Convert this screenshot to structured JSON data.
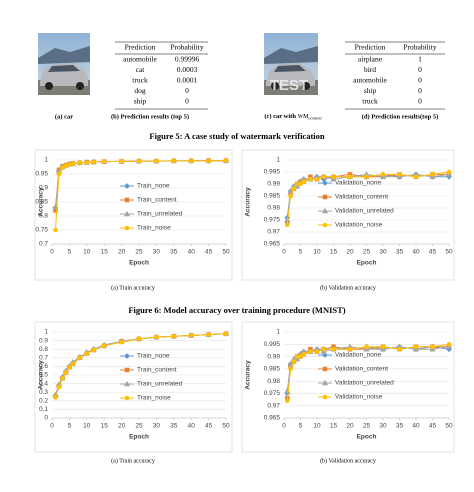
{
  "figure5": {
    "caption": "Figure 5: A case study of watermark verification",
    "images": [
      {
        "caption": "(a) car"
      },
      {
        "caption_parts": [
          "(c) car with ",
          "WM",
          "content"
        ],
        "watermark": "TEST"
      }
    ],
    "tables": [
      {
        "header": [
          "Prediction",
          "Probability"
        ],
        "rows": [
          [
            "automobile",
            "0.99996"
          ],
          [
            "cat",
            "0.0003"
          ],
          [
            "truck",
            "0.0001"
          ],
          [
            "dog",
            "0"
          ],
          [
            "ship",
            "0"
          ]
        ],
        "caption": "(b) Prediction results (top 5)"
      },
      {
        "header": [
          "Prediction",
          "Probability"
        ],
        "rows": [
          [
            "airplane",
            "1"
          ],
          [
            "bird",
            "0"
          ],
          [
            "automobile",
            "0"
          ],
          [
            "ship",
            "0"
          ],
          [
            "truck",
            "0"
          ]
        ],
        "caption": "(d) Prediction results(top 5)"
      }
    ]
  },
  "figure6": {
    "caption": "Figure 6: Model accuracy over training procedure (MNIST)"
  },
  "chart_data": [
    {
      "type": "line",
      "caption": "(a) Train accuracy",
      "xlabel": "Epoch",
      "ylabel": "Accuracy",
      "grid": true,
      "x": [
        1,
        2,
        3,
        4,
        5,
        6,
        8,
        10,
        12,
        15,
        20,
        25,
        30,
        35,
        40,
        45,
        50
      ],
      "xlim": [
        0,
        50
      ],
      "xticks": [
        0,
        5,
        10,
        15,
        20,
        25,
        30,
        35,
        40,
        45,
        50
      ],
      "ylim": [
        0.7,
        1
      ],
      "yticks": [
        0.7,
        0.75,
        0.8,
        0.85,
        0.9,
        0.95,
        1
      ],
      "series": [
        {
          "name": "Train_none",
          "color": "#5b9bd5",
          "marker": "diamond",
          "values": [
            0.83,
            0.96,
            0.975,
            0.98,
            0.985,
            0.987,
            0.99,
            0.992,
            0.993,
            0.994,
            0.995,
            0.996,
            0.996,
            0.997,
            0.997,
            0.997,
            0.997
          ]
        },
        {
          "name": "Train_content",
          "color": "#ed7d31",
          "marker": "square",
          "values": [
            0.82,
            0.965,
            0.977,
            0.982,
            0.985,
            0.988,
            0.99,
            0.992,
            0.993,
            0.994,
            0.995,
            0.996,
            0.996,
            0.997,
            0.997,
            0.998,
            0.998
          ]
        },
        {
          "name": "Train_unrelated",
          "color": "#a5a5a5",
          "marker": "triangle",
          "values": [
            0.83,
            0.96,
            0.975,
            0.981,
            0.985,
            0.987,
            0.99,
            0.991,
            0.993,
            0.994,
            0.995,
            0.996,
            0.996,
            0.997,
            0.997,
            0.997,
            0.998
          ]
        },
        {
          "name": "Train_noise",
          "color": "#ffc000",
          "marker": "circle",
          "values": [
            0.75,
            0.95,
            0.972,
            0.98,
            0.984,
            0.987,
            0.99,
            0.991,
            0.993,
            0.994,
            0.995,
            0.996,
            0.996,
            0.997,
            0.997,
            0.997,
            0.998
          ]
        }
      ]
    },
    {
      "type": "line",
      "caption": "(b) Validation accuracy",
      "xlabel": "Epoch",
      "ylabel": "Accuracy",
      "grid": true,
      "x": [
        1,
        2,
        3,
        4,
        5,
        6,
        8,
        10,
        12,
        15,
        20,
        25,
        30,
        35,
        40,
        45,
        50
      ],
      "xlim": [
        0,
        50
      ],
      "xticks": [
        0,
        5,
        10,
        15,
        20,
        25,
        30,
        35,
        40,
        45,
        50
      ],
      "ylim": [
        0.965,
        1
      ],
      "yticks": [
        0.965,
        0.97,
        0.975,
        0.98,
        0.985,
        0.99,
        0.995,
        1
      ],
      "series": [
        {
          "name": "Validation_none",
          "color": "#5b9bd5",
          "marker": "diamond",
          "values": [
            0.976,
            0.987,
            0.989,
            0.99,
            0.991,
            0.992,
            0.992,
            0.993,
            0.992,
            0.993,
            0.993,
            0.993,
            0.994,
            0.993,
            0.994,
            0.993,
            0.993
          ]
        },
        {
          "name": "Validation_content",
          "color": "#ed7d31",
          "marker": "square",
          "values": [
            0.974,
            0.986,
            0.988,
            0.99,
            0.991,
            0.991,
            0.993,
            0.992,
            0.993,
            0.993,
            0.994,
            0.993,
            0.993,
            0.994,
            0.993,
            0.994,
            0.994
          ]
        },
        {
          "name": "Validation_unrelated",
          "color": "#a5a5a5",
          "marker": "triangle",
          "values": [
            0.975,
            0.987,
            0.989,
            0.989,
            0.991,
            0.992,
            0.992,
            0.993,
            0.993,
            0.992,
            0.993,
            0.994,
            0.993,
            0.993,
            0.994,
            0.993,
            0.994
          ]
        },
        {
          "name": "Validation_noise",
          "color": "#ffc000",
          "marker": "circle",
          "values": [
            0.973,
            0.985,
            0.988,
            0.99,
            0.99,
            0.991,
            0.992,
            0.992,
            0.993,
            0.993,
            0.993,
            0.993,
            0.994,
            0.994,
            0.993,
            0.994,
            0.995
          ]
        }
      ]
    },
    {
      "type": "line",
      "caption": "(a) Train accuracy",
      "xlabel": "Epoch",
      "ylabel": "Accuracy",
      "grid": true,
      "x": [
        1,
        2,
        3,
        4,
        5,
        6,
        8,
        10,
        12,
        15,
        20,
        25,
        30,
        35,
        40,
        45,
        50
      ],
      "xlim": [
        0,
        50
      ],
      "xticks": [
        0,
        5,
        10,
        15,
        20,
        25,
        30,
        35,
        40,
        45,
        50
      ],
      "ylim": [
        0,
        1
      ],
      "yticks": [
        0,
        0.1,
        0.2,
        0.3,
        0.4,
        0.5,
        0.6,
        0.7,
        0.8,
        0.9,
        1
      ],
      "series": [
        {
          "name": "Train_none",
          "color": "#5b9bd5",
          "marker": "diamond",
          "values": [
            0.26,
            0.38,
            0.47,
            0.54,
            0.6,
            0.64,
            0.71,
            0.76,
            0.8,
            0.84,
            0.89,
            0.92,
            0.94,
            0.95,
            0.96,
            0.97,
            0.98
          ]
        },
        {
          "name": "Train_content",
          "color": "#ed7d31",
          "marker": "square",
          "values": [
            0.25,
            0.37,
            0.46,
            0.53,
            0.59,
            0.63,
            0.7,
            0.75,
            0.79,
            0.84,
            0.89,
            0.92,
            0.94,
            0.95,
            0.96,
            0.97,
            0.98
          ]
        },
        {
          "name": "Train_unrelated",
          "color": "#a5a5a5",
          "marker": "triangle",
          "values": [
            0.27,
            0.39,
            0.48,
            0.55,
            0.6,
            0.65,
            0.71,
            0.76,
            0.8,
            0.85,
            0.89,
            0.92,
            0.94,
            0.95,
            0.96,
            0.97,
            0.98
          ]
        },
        {
          "name": "Train_noise",
          "color": "#ffc000",
          "marker": "circle",
          "values": [
            0.24,
            0.36,
            0.46,
            0.53,
            0.59,
            0.63,
            0.7,
            0.75,
            0.79,
            0.84,
            0.88,
            0.92,
            0.94,
            0.95,
            0.96,
            0.97,
            0.98
          ]
        }
      ]
    },
    {
      "type": "line",
      "caption": "(b) Validation accuracy",
      "xlabel": "Epoch",
      "ylabel": "Accuracy",
      "grid": true,
      "x": [
        1,
        2,
        3,
        4,
        5,
        6,
        8,
        10,
        12,
        15,
        20,
        25,
        30,
        35,
        40,
        45,
        50
      ],
      "xlim": [
        0,
        50
      ],
      "xticks": [
        0,
        5,
        10,
        15,
        20,
        25,
        30,
        35,
        40,
        45,
        50
      ],
      "ylim": [
        0.965,
        1
      ],
      "yticks": [
        0.965,
        0.97,
        0.975,
        0.98,
        0.985,
        0.99,
        0.995,
        1
      ],
      "series": [
        {
          "name": "Validation_none",
          "color": "#5b9bd5",
          "marker": "diamond",
          "values": [
            0.975,
            0.987,
            0.988,
            0.99,
            0.991,
            0.992,
            0.992,
            0.993,
            0.993,
            0.993,
            0.993,
            0.994,
            0.993,
            0.994,
            0.993,
            0.994,
            0.993
          ]
        },
        {
          "name": "Validation_content",
          "color": "#ed7d31",
          "marker": "square",
          "values": [
            0.973,
            0.986,
            0.988,
            0.99,
            0.99,
            0.991,
            0.993,
            0.992,
            0.993,
            0.994,
            0.993,
            0.993,
            0.994,
            0.993,
            0.994,
            0.994,
            0.994
          ]
        },
        {
          "name": "Validation_unrelated",
          "color": "#a5a5a5",
          "marker": "triangle",
          "values": [
            0.976,
            0.987,
            0.989,
            0.989,
            0.991,
            0.992,
            0.992,
            0.993,
            0.992,
            0.993,
            0.994,
            0.993,
            0.993,
            0.994,
            0.993,
            0.993,
            0.994
          ]
        },
        {
          "name": "Validation_noise",
          "color": "#ffc000",
          "marker": "circle",
          "values": [
            0.972,
            0.985,
            0.988,
            0.99,
            0.99,
            0.991,
            0.992,
            0.992,
            0.993,
            0.993,
            0.993,
            0.994,
            0.994,
            0.993,
            0.994,
            0.994,
            0.995
          ]
        }
      ]
    }
  ]
}
